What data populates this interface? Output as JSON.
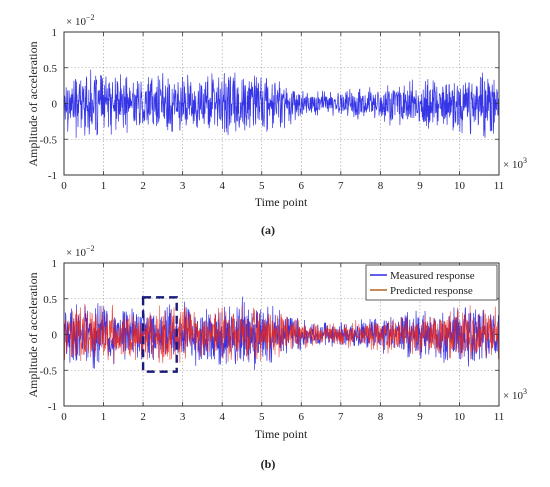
{
  "colors": {
    "measured": "#2a2ae6",
    "predicted": "#e8241a",
    "predicted_legend": "#b5651d",
    "grid": "#9a9a9a",
    "box": "#1a1a7a"
  },
  "chart_data": [
    {
      "type": "line",
      "panel_label": "(a)",
      "xlabel": "Time point",
      "ylabel": "Amplitude of acceleration",
      "x_multiplier": "× 10",
      "x_multiplier_exp": "3",
      "y_multiplier": "× 10",
      "y_multiplier_exp": "−2",
      "xlim": [
        0,
        11
      ],
      "ylim": [
        -1,
        1
      ],
      "xticks": [
        "0",
        "1",
        "2",
        "3",
        "4",
        "5",
        "6",
        "7",
        "8",
        "9",
        "10",
        "11"
      ],
      "yticks": [
        "1",
        "0.5",
        "0",
        "-0.5",
        "-1"
      ],
      "grid": true,
      "series": [
        {
          "key": "measured",
          "envelope_x": [
            0,
            0.5,
            1,
            1.5,
            2,
            2.5,
            3,
            3.5,
            4,
            4.5,
            5,
            5.5,
            6,
            6.5,
            7,
            7.5,
            8,
            8.5,
            9,
            9.5,
            10,
            10.5,
            11
          ],
          "envelope_amp": [
            0.45,
            0.55,
            0.48,
            0.45,
            0.45,
            0.5,
            0.5,
            0.45,
            0.55,
            0.55,
            0.48,
            0.42,
            0.25,
            0.2,
            0.2,
            0.25,
            0.3,
            0.35,
            0.38,
            0.42,
            0.48,
            0.5,
            0.45
          ]
        }
      ]
    },
    {
      "type": "line",
      "panel_label": "(b)",
      "xlabel": "Time point",
      "ylabel": "Amplitude of acceleration",
      "x_multiplier": "× 10",
      "x_multiplier_exp": "3",
      "y_multiplier": "× 10",
      "y_multiplier_exp": "−2",
      "xlim": [
        0,
        11
      ],
      "ylim": [
        -1,
        1
      ],
      "xticks": [
        "0",
        "1",
        "2",
        "3",
        "4",
        "5",
        "6",
        "7",
        "8",
        "9",
        "10",
        "11"
      ],
      "yticks": [
        "1",
        "0.5",
        "0",
        "-0.5",
        "-1"
      ],
      "grid": true,
      "legend": [
        "Measured response",
        "Predicted response"
      ],
      "legend_position": "top-right",
      "highlight_box": {
        "x": [
          2,
          2.85
        ],
        "y": [
          -0.52,
          0.52
        ]
      },
      "series": [
        {
          "key": "measured",
          "name": "Measured response",
          "envelope_x": [
            0,
            0.5,
            1,
            1.5,
            2,
            2.5,
            3,
            3.5,
            4,
            4.5,
            5,
            5.5,
            6,
            6.5,
            7,
            7.5,
            8,
            8.5,
            9,
            9.5,
            10,
            10.5,
            11
          ],
          "envelope_amp": [
            0.45,
            0.55,
            0.48,
            0.45,
            0.45,
            0.5,
            0.5,
            0.45,
            0.55,
            0.55,
            0.48,
            0.42,
            0.25,
            0.2,
            0.2,
            0.25,
            0.3,
            0.35,
            0.38,
            0.42,
            0.48,
            0.5,
            0.45
          ]
        },
        {
          "key": "predicted",
          "name": "Predicted response",
          "envelope_x": [
            0,
            0.5,
            1,
            1.5,
            2,
            2.5,
            3,
            3.5,
            4,
            4.5,
            5,
            5.5,
            6,
            6.5,
            7,
            7.5,
            8,
            8.5,
            9,
            9.5,
            10,
            10.5,
            11
          ],
          "envelope_amp": [
            0.42,
            0.5,
            0.45,
            0.42,
            0.42,
            0.45,
            0.45,
            0.42,
            0.5,
            0.5,
            0.45,
            0.4,
            0.22,
            0.18,
            0.18,
            0.22,
            0.28,
            0.32,
            0.35,
            0.4,
            0.45,
            0.48,
            0.42
          ]
        }
      ]
    }
  ]
}
